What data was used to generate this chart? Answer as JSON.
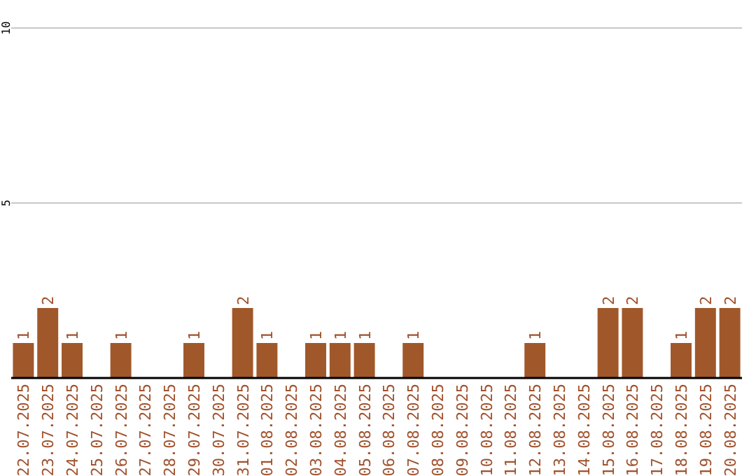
{
  "chart_data": {
    "type": "bar",
    "categories": [
      "22.07.2025",
      "23.07.2025",
      "24.07.2025",
      "25.07.2025",
      "26.07.2025",
      "27.07.2025",
      "28.07.2025",
      "29.07.2025",
      "30.07.2025",
      "31.07.2025",
      "01.08.2025",
      "02.08.2025",
      "03.08.2025",
      "04.08.2025",
      "05.08.2025",
      "06.08.2025",
      "07.08.2025",
      "08.08.2025",
      "09.08.2025",
      "10.08.2025",
      "11.08.2025",
      "12.08.2025",
      "13.08.2025",
      "14.08.2025",
      "15.08.2025",
      "16.08.2025",
      "17.08.2025",
      "18.08.2025",
      "19.08.2025",
      "20.08.2025"
    ],
    "values": [
      1,
      2,
      1,
      0,
      1,
      0,
      0,
      1,
      0,
      2,
      1,
      0,
      1,
      1,
      1,
      0,
      1,
      0,
      0,
      0,
      0,
      1,
      0,
      0,
      2,
      2,
      0,
      1,
      2,
      2
    ],
    "value_labels": [
      "1",
      "2",
      "1",
      null,
      "1",
      null,
      null,
      "1",
      null,
      "2",
      "1",
      null,
      "1",
      "1",
      "1",
      null,
      "1",
      null,
      null,
      null,
      null,
      "1",
      null,
      null,
      "2",
      "2",
      null,
      "1",
      "2",
      "2"
    ],
    "color": "#a0572a",
    "ylim": [
      0,
      10
    ],
    "yticks": [
      5,
      10
    ],
    "grid": "y"
  }
}
